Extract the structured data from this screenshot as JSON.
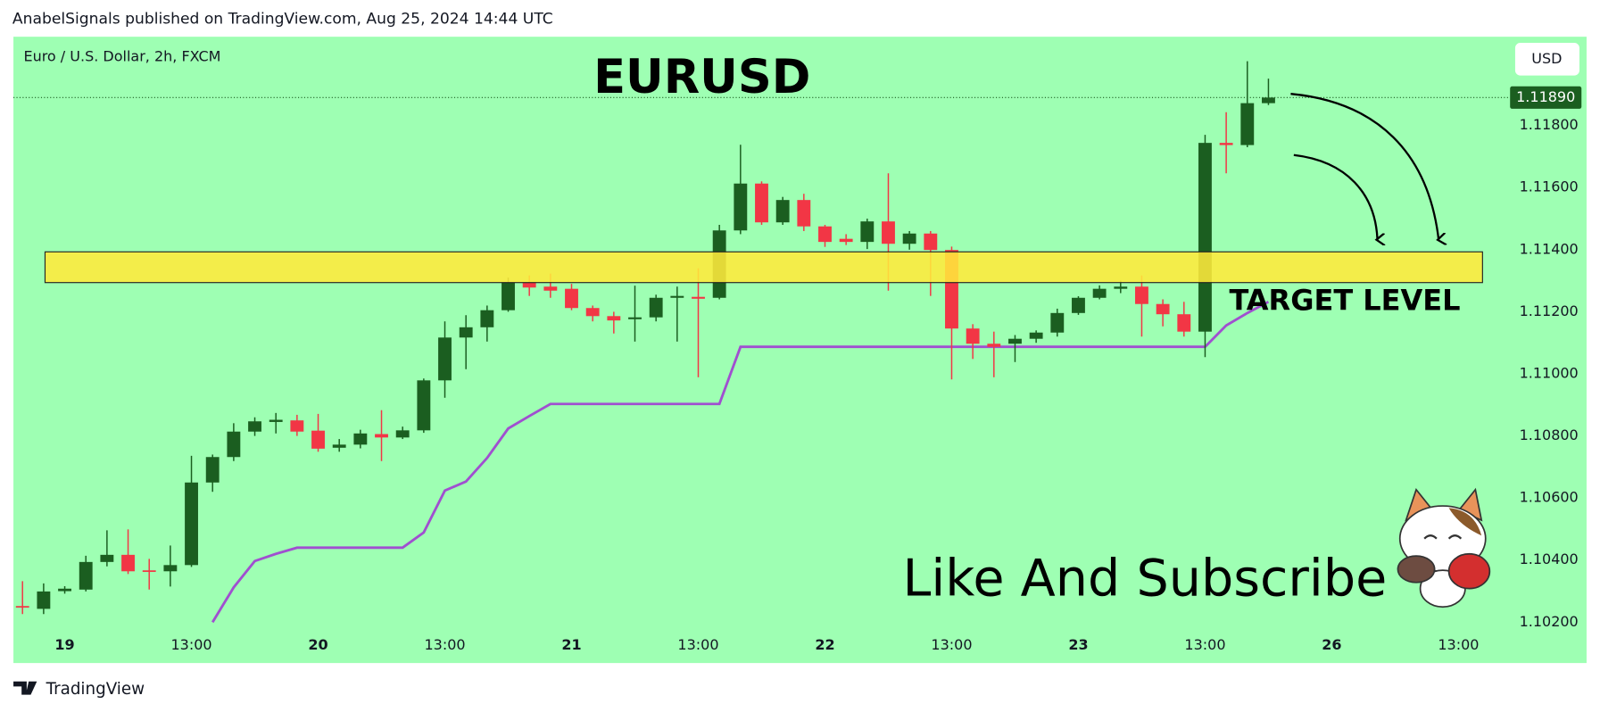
{
  "header": "AnabelSignals published on TradingView.com, Aug 25, 2024 14:44 UTC",
  "footer": "TradingView",
  "chart_data": {
    "type": "candlestick",
    "title": "EURUSD",
    "symbol": "Euro / U.S. Dollar, 2h, FXCM",
    "currency": "USD",
    "up_color": "#1b5e20",
    "down_color": "#f23645",
    "background": "#9effb3",
    "open": [
      1.10252,
      1.10243,
      1.103,
      1.10305,
      1.10394,
      1.10417,
      1.10367,
      1.10364,
      1.10384,
      1.1065,
      1.10732,
      1.10814,
      1.10845,
      1.1085,
      1.10817,
      1.10762,
      1.10772,
      1.10806,
      1.10795,
      1.10818,
      1.10979,
      1.11117,
      1.1115,
      1.11205,
      1.11294,
      1.11281,
      1.11274,
      1.11212,
      1.11186,
      1.11176,
      1.11182,
      1.11245,
      1.11248,
      1.11245,
      1.11462,
      1.11613,
      1.11488,
      1.1156,
      1.11475,
      1.11435,
      1.11425,
      1.11491,
      1.11419,
      1.11452,
      1.11399,
      1.11146,
      1.11097,
      1.11097,
      1.11113,
      1.11133,
      1.11196,
      1.11245,
      1.11274,
      1.11281,
      1.11225,
      1.11192,
      1.11136,
      1.11744,
      1.11737,
      1.11872
    ],
    "high": [
      1.10332,
      1.10325,
      1.10316,
      1.10414,
      1.10496,
      1.10499,
      1.10404,
      1.10447,
      1.10736,
      1.1074,
      1.10841,
      1.1086,
      1.10874,
      1.10868,
      1.10871,
      1.1079,
      1.1082,
      1.10883,
      1.1083,
      1.10985,
      1.11169,
      1.11189,
      1.1122,
      1.1131,
      1.11317,
      1.11323,
      1.1129,
      1.1122,
      1.112,
      1.11284,
      1.11255,
      1.11281,
      1.1134,
      1.1148,
      1.11738,
      1.1162,
      1.1157,
      1.1158,
      1.1148,
      1.1145,
      1.115,
      1.11646,
      1.1146,
      1.1146,
      1.1141,
      1.1116,
      1.11136,
      1.11125,
      1.1114,
      1.1121,
      1.1125,
      1.11285,
      1.113,
      1.11317,
      1.1124,
      1.11232,
      1.1177,
      1.11843,
      1.12007,
      1.11951
    ],
    "low": [
      1.10226,
      1.10226,
      1.10292,
      1.10299,
      1.1038,
      1.10355,
      1.10305,
      1.10315,
      1.10378,
      1.1062,
      1.10719,
      1.108,
      1.10808,
      1.108,
      1.10749,
      1.10749,
      1.1076,
      1.10719,
      1.1079,
      1.1081,
      1.10923,
      1.11015,
      1.11104,
      1.112,
      1.11251,
      1.11245,
      1.11205,
      1.11169,
      1.1113,
      1.11104,
      1.11169,
      1.11104,
      1.10989,
      1.1124,
      1.1145,
      1.1148,
      1.1148,
      1.1146,
      1.11409,
      1.11415,
      1.11402,
      1.11268,
      1.114,
      1.11251,
      1.10982,
      1.11048,
      1.10989,
      1.11038,
      1.111,
      1.1112,
      1.1119,
      1.1124,
      1.1126,
      1.1112,
      1.11153,
      1.1112,
      1.11054,
      1.11646,
      1.1173,
      1.11866
    ],
    "close": [
      1.10248,
      1.10299,
      1.10308,
      1.10394,
      1.10417,
      1.10364,
      1.10362,
      1.10384,
      1.1065,
      1.10732,
      1.10814,
      1.10847,
      1.10852,
      1.10814,
      1.10759,
      1.10772,
      1.10808,
      1.10795,
      1.10818,
      1.10979,
      1.11117,
      1.1115,
      1.11205,
      1.11294,
      1.11278,
      1.11268,
      1.11212,
      1.11186,
      1.11172,
      1.11182,
      1.11245,
      1.11251,
      1.11242,
      1.11462,
      1.11613,
      1.11488,
      1.1156,
      1.11475,
      1.11425,
      1.11425,
      1.11491,
      1.11419,
      1.11452,
      1.11399,
      1.11146,
      1.11097,
      1.11087,
      1.11113,
      1.11133,
      1.11196,
      1.11245,
      1.11274,
      1.11281,
      1.11225,
      1.11192,
      1.11136,
      1.11744,
      1.11737,
      1.11872,
      1.1189
    ],
    "indicator": {
      "color": "#a04fd0",
      "values": [
        null,
        null,
        null,
        null,
        null,
        null,
        null,
        null,
        null,
        1.102,
        1.10312,
        1.10397,
        1.1042,
        1.1044,
        1.1044,
        1.1044,
        1.1044,
        1.1044,
        1.1044,
        1.10489,
        1.10624,
        1.10653,
        1.10729,
        1.10824,
        1.10864,
        1.10903,
        1.10903,
        1.10903,
        1.10903,
        1.10903,
        1.10903,
        1.10903,
        1.10903,
        1.10903,
        1.11087,
        1.11087,
        1.11087,
        1.11087,
        1.11087,
        1.11087,
        1.11087,
        1.11087,
        1.11087,
        1.11087,
        1.11087,
        1.11087,
        1.11087,
        1.11087,
        1.11087,
        1.11087,
        1.11087,
        1.11087,
        1.11087,
        1.11087,
        1.11087,
        1.11087,
        1.11087,
        1.11156,
        1.11196,
        1.11232
      ]
    },
    "zone": {
      "low": 1.11294,
      "high": 1.11393,
      "color": "#ffeb3b",
      "label": "TARGET LEVEL"
    },
    "last_price": {
      "value": 1.1189,
      "label": "1.11890",
      "color": "#1b5e20"
    },
    "annotation": "Like And Subscribe",
    "xlim": [
      -0.43,
      70.2
    ],
    "ylim": [
      1.10167,
      1.12086
    ],
    "xticks": [
      {
        "value": 2,
        "label": "19"
      },
      {
        "value": 8,
        "label": "13:00"
      },
      {
        "value": 14,
        "label": "20"
      },
      {
        "value": 20,
        "label": "13:00"
      },
      {
        "value": 26,
        "label": "21"
      },
      {
        "value": 32,
        "label": "13:00"
      },
      {
        "value": 38,
        "label": "22"
      },
      {
        "value": 44,
        "label": "13:00"
      },
      {
        "value": 50,
        "label": "23"
      },
      {
        "value": 56,
        "label": "13:00"
      },
      {
        "value": 62,
        "label": "26"
      },
      {
        "value": 68,
        "label": "13:00"
      }
    ],
    "yticks": [
      {
        "value": 1.102,
        "label": "1.10200"
      },
      {
        "value": 1.104,
        "label": "1.10400"
      },
      {
        "value": 1.106,
        "label": "1.10600"
      },
      {
        "value": 1.108,
        "label": "1.10800"
      },
      {
        "value": 1.11,
        "label": "1.11000"
      },
      {
        "value": 1.112,
        "label": "1.11200"
      },
      {
        "value": 1.114,
        "label": "1.11400"
      },
      {
        "value": 1.116,
        "label": "1.11600"
      },
      {
        "value": 1.118,
        "label": "1.11800"
      }
    ]
  }
}
